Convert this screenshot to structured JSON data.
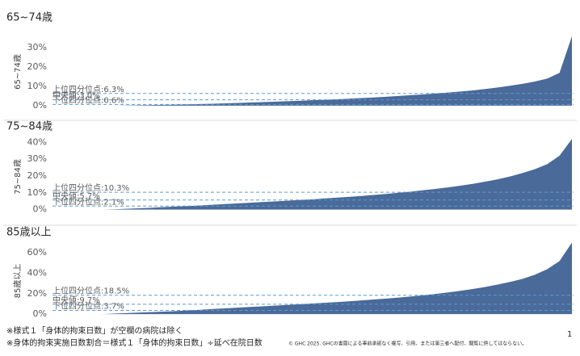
{
  "chart_data": [
    {
      "type": "area",
      "title": "65~74歳",
      "y_label": "65~74歳",
      "color": "#4a6a99",
      "ylim": [
        -3,
        38
      ],
      "yticks": [
        {
          "value": 0,
          "label": "0%"
        },
        {
          "value": 10,
          "label": "10%"
        },
        {
          "value": 20,
          "label": "20%"
        },
        {
          "value": 30,
          "label": "30%"
        }
      ],
      "values": [
        0,
        0,
        0,
        0.1,
        0.2,
        0.3,
        0.4,
        0.5,
        0.6,
        0.8,
        1.0,
        1.2,
        1.4,
        1.6,
        1.8,
        2.0,
        2.3,
        2.5,
        2.8,
        3.0,
        3.3,
        3.6,
        3.9,
        4.2,
        4.6,
        5.0,
        5.4,
        5.8,
        6.3,
        6.8,
        7.3,
        7.9,
        8.6,
        9.4,
        10.3,
        11.3,
        12.5,
        14,
        17,
        36
      ],
      "reference_lines": [
        {
          "label": "上位四分位点:6.3%",
          "value": 6.3
        },
        {
          "label": "中央値:3.0%",
          "value": 3.0
        },
        {
          "label": "下位四分位点:0.6%",
          "value": 0.6
        }
      ]
    },
    {
      "type": "area",
      "title": "75~84歳",
      "y_label": "75~84歳",
      "color": "#4a6a99",
      "ylim": [
        -4,
        43
      ],
      "yticks": [
        {
          "value": 0,
          "label": "0%"
        },
        {
          "value": 10,
          "label": "10%"
        },
        {
          "value": 20,
          "label": "20%"
        },
        {
          "value": 30,
          "label": "30%"
        },
        {
          "value": 40,
          "label": "40%"
        }
      ],
      "values": [
        0,
        0,
        0.2,
        0.5,
        0.8,
        1.1,
        1.5,
        1.8,
        2.1,
        2.5,
        2.9,
        3.3,
        3.7,
        4.1,
        4.5,
        4.9,
        5.3,
        5.7,
        6.1,
        6.6,
        7.1,
        7.6,
        8.1,
        8.7,
        9.3,
        10.0,
        10.7,
        11.5,
        12.3,
        13.2,
        14.2,
        15.3,
        16.6,
        18,
        19.7,
        21.7,
        24,
        27,
        32,
        42
      ],
      "reference_lines": [
        {
          "label": "上位四分位点:10.3%",
          "value": 10.3
        },
        {
          "label": "中央値:5.7%",
          "value": 5.7
        },
        {
          "label": "下位四分位点:2.1%",
          "value": 2.1
        }
      ]
    },
    {
      "type": "area",
      "title": "85歳以上",
      "y_label": "85歳以上",
      "color": "#4a6a99",
      "ylim": [
        -7,
        72
      ],
      "yticks": [
        {
          "value": 0,
          "label": "0%"
        },
        {
          "value": 20,
          "label": "20%"
        },
        {
          "value": 40,
          "label": "40%"
        },
        {
          "value": 60,
          "label": "60%"
        }
      ],
      "values": [
        0,
        0,
        0.5,
        1,
        1.5,
        2,
        2.5,
        3,
        3.7,
        4.3,
        5,
        5.6,
        6.3,
        7,
        7.6,
        8.3,
        9,
        9.7,
        10.4,
        11.1,
        11.8,
        12.6,
        13.4,
        14.3,
        15.2,
        16.2,
        17.3,
        18.5,
        19.8,
        21.2,
        22.8,
        24.6,
        26.6,
        28.9,
        31.5,
        34.5,
        38.5,
        44,
        52,
        70
      ],
      "reference_lines": [
        {
          "label": "上位四分位点:18.5%",
          "value": 18.5
        },
        {
          "label": "中央値:9.7%",
          "value": 9.7
        },
        {
          "label": "下位四分位点:3.7%",
          "value": 3.7
        }
      ]
    }
  ],
  "footnotes": [
    "※様式１「身体的拘束日数」が空欄の病院は除く",
    "※身体的拘束実施日数割合＝様式１「身体的拘束日数」÷延べ在院日数"
  ],
  "copyright": "© GHC 2025. GHCの書面による事前承諾なく複写、引用、または第三者へ配付、閲覧に供してはならない。",
  "page_number": "1"
}
